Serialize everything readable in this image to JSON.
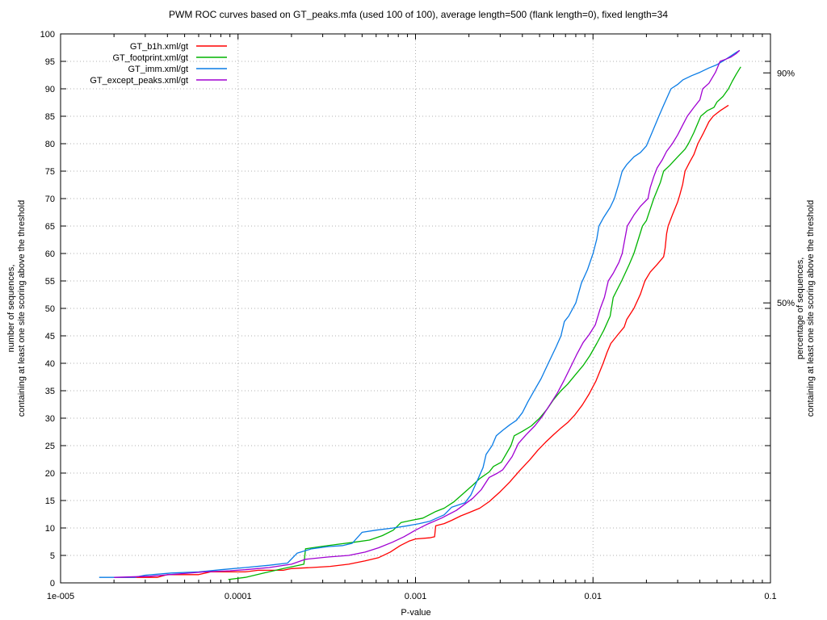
{
  "title": "PWM ROC curves based on GT_peaks.mfa (used 100 of 100), average length=500 (flank length=0), fixed length=34",
  "xlabel": "P-value",
  "ylabel_left": {
    "line1": "number of sequences,",
    "line2": "containing at least one site scoring above the threshold"
  },
  "ylabel_right": {
    "line1": "percentage of sequences,",
    "line2": "containing at least one site scoring above the threshold"
  },
  "chart_data": {
    "type": "line",
    "x_axis": {
      "label": "P-value",
      "scale": "log",
      "min": 1e-05,
      "max": 0.1,
      "decade_tick_labels": [
        "1e-005",
        "0.0001",
        "0.001",
        "0.01",
        "0.1"
      ],
      "grid_decades": [
        0.0001,
        0.001,
        0.01
      ]
    },
    "y_axis": {
      "label": "number of sequences, containing at least one site scoring above the threshold",
      "min": 0,
      "max": 100,
      "tick_step": 5
    },
    "y2_axis": {
      "label": "percentage of sequences, containing at least one site scoring above the threshold",
      "marks": [
        {
          "label": "90%",
          "at_count": 92.9
        },
        {
          "label": "50%",
          "at_count": 51.0
        }
      ]
    },
    "grid": {
      "color": "#b0b0b0",
      "style": "dotted"
    },
    "series": [
      {
        "name": "GT_b1h.xml/gt",
        "color": "#ff0000",
        "points": [
          [
            2e-05,
            1
          ],
          [
            3.5e-05,
            1
          ],
          [
            4e-05,
            1.5
          ],
          [
            6e-05,
            1.5
          ],
          [
            7e-05,
            2
          ],
          [
            0.00011,
            2
          ],
          [
            0.00013,
            2.3
          ],
          [
            0.00018,
            2.3
          ],
          [
            0.0002,
            2.6
          ],
          [
            0.00026,
            2.8
          ],
          [
            0.00033,
            3
          ],
          [
            0.00042,
            3.4
          ],
          [
            0.00052,
            4
          ],
          [
            0.00062,
            4.6
          ],
          [
            0.00072,
            5.6
          ],
          [
            0.00082,
            6.8
          ],
          [
            0.00092,
            7.6
          ],
          [
            0.001,
            8
          ],
          [
            0.0012,
            8.2
          ],
          [
            0.00128,
            8.4
          ],
          [
            0.0013,
            10.4
          ],
          [
            0.00145,
            10.8
          ],
          [
            0.0016,
            11.4
          ],
          [
            0.0018,
            12.2
          ],
          [
            0.002,
            12.8
          ],
          [
            0.0023,
            13.6
          ],
          [
            0.0026,
            14.8
          ],
          [
            0.003,
            16.6
          ],
          [
            0.0034,
            18.4
          ],
          [
            0.0039,
            20.6
          ],
          [
            0.0044,
            22.4
          ],
          [
            0.0049,
            24.2
          ],
          [
            0.0054,
            25.6
          ],
          [
            0.006,
            27
          ],
          [
            0.0066,
            28.2
          ],
          [
            0.0072,
            29.2
          ],
          [
            0.0079,
            30.6
          ],
          [
            0.0087,
            32.4
          ],
          [
            0.0095,
            34.4
          ],
          [
            0.0104,
            36.8
          ],
          [
            0.0114,
            40
          ],
          [
            0.012,
            42
          ],
          [
            0.0126,
            43.6
          ],
          [
            0.0138,
            45.2
          ],
          [
            0.015,
            46.6
          ],
          [
            0.0155,
            48
          ],
          [
            0.017,
            50
          ],
          [
            0.0185,
            52.6
          ],
          [
            0.0196,
            55
          ],
          [
            0.021,
            56.6
          ],
          [
            0.023,
            58
          ],
          [
            0.025,
            59.4
          ],
          [
            0.0255,
            61
          ],
          [
            0.026,
            63.6
          ],
          [
            0.0265,
            65
          ],
          [
            0.028,
            67
          ],
          [
            0.03,
            69.4
          ],
          [
            0.0308,
            70.6
          ],
          [
            0.032,
            72.6
          ],
          [
            0.033,
            75
          ],
          [
            0.035,
            76.6
          ],
          [
            0.037,
            78
          ],
          [
            0.039,
            80
          ],
          [
            0.042,
            82
          ],
          [
            0.045,
            84
          ],
          [
            0.0475,
            85
          ],
          [
            0.052,
            86
          ],
          [
            0.058,
            87
          ]
        ]
      },
      {
        "name": "GT_footprint.xml/gt",
        "color": "#00b400",
        "points": [
          [
            8.8e-05,
            0.6
          ],
          [
            0.00011,
            1
          ],
          [
            0.00014,
            1.8
          ],
          [
            0.00018,
            2.6
          ],
          [
            0.00022,
            3.2
          ],
          [
            0.000235,
            3.4
          ],
          [
            0.00024,
            6.2
          ],
          [
            0.00029,
            6.6
          ],
          [
            0.00036,
            7
          ],
          [
            0.00045,
            7.4
          ],
          [
            0.00055,
            7.8
          ],
          [
            0.00065,
            8.6
          ],
          [
            0.00075,
            9.6
          ],
          [
            0.00083,
            11
          ],
          [
            0.00095,
            11.4
          ],
          [
            0.0011,
            11.8
          ],
          [
            0.0013,
            13
          ],
          [
            0.00145,
            13.6
          ],
          [
            0.00165,
            14.8
          ],
          [
            0.00185,
            16.2
          ],
          [
            0.0021,
            17.8
          ],
          [
            0.0023,
            19
          ],
          [
            0.0026,
            20.2
          ],
          [
            0.00275,
            21.2
          ],
          [
            0.00305,
            22
          ],
          [
            0.00345,
            25
          ],
          [
            0.0036,
            26.8
          ],
          [
            0.004,
            27.6
          ],
          [
            0.0045,
            28.6
          ],
          [
            0.005,
            30
          ],
          [
            0.0055,
            31.6
          ],
          [
            0.006,
            33.4
          ],
          [
            0.0066,
            35
          ],
          [
            0.0072,
            36.2
          ],
          [
            0.008,
            38
          ],
          [
            0.0088,
            39.6
          ],
          [
            0.0096,
            41.4
          ],
          [
            0.0105,
            43.6
          ],
          [
            0.0115,
            46
          ],
          [
            0.0125,
            48.6
          ],
          [
            0.013,
            52
          ],
          [
            0.0145,
            55
          ],
          [
            0.016,
            58
          ],
          [
            0.017,
            60
          ],
          [
            0.019,
            65
          ],
          [
            0.02,
            66
          ],
          [
            0.022,
            70
          ],
          [
            0.024,
            73
          ],
          [
            0.025,
            75
          ],
          [
            0.027,
            76
          ],
          [
            0.03,
            77.6
          ],
          [
            0.033,
            79
          ],
          [
            0.0345,
            80
          ],
          [
            0.037,
            82
          ],
          [
            0.0405,
            85
          ],
          [
            0.044,
            86
          ],
          [
            0.048,
            86.6
          ],
          [
            0.05,
            87.6
          ],
          [
            0.054,
            88.6
          ],
          [
            0.058,
            90
          ],
          [
            0.061,
            91.4
          ],
          [
            0.064,
            92.6
          ],
          [
            0.068,
            94
          ]
        ]
      },
      {
        "name": "GT_imm.xml/gt",
        "color": "#0a7ce6",
        "points": [
          [
            1.65e-05,
            1
          ],
          [
            2.6e-05,
            1
          ],
          [
            3e-05,
            1.4
          ],
          [
            4.2e-05,
            1.8
          ],
          [
            6e-05,
            2
          ],
          [
            8e-05,
            2.4
          ],
          [
            0.00011,
            2.8
          ],
          [
            0.00015,
            3.2
          ],
          [
            0.00019,
            3.6
          ],
          [
            0.000215,
            5.4
          ],
          [
            0.00026,
            6.2
          ],
          [
            0.00032,
            6.6
          ],
          [
            0.00039,
            6.8
          ],
          [
            0.00044,
            7.2
          ],
          [
            0.0005,
            9.2
          ],
          [
            0.0006,
            9.6
          ],
          [
            0.00075,
            10
          ],
          [
            0.0009,
            10.4
          ],
          [
            0.00105,
            10.8
          ],
          [
            0.0012,
            11.2
          ],
          [
            0.00145,
            12.4
          ],
          [
            0.0016,
            13.8
          ],
          [
            0.0019,
            14.6
          ],
          [
            0.00205,
            16
          ],
          [
            0.0022,
            18.2
          ],
          [
            0.0024,
            21
          ],
          [
            0.0025,
            23.4
          ],
          [
            0.0027,
            25
          ],
          [
            0.00285,
            26.8
          ],
          [
            0.0031,
            27.8
          ],
          [
            0.0034,
            28.8
          ],
          [
            0.0037,
            29.6
          ],
          [
            0.004,
            31
          ],
          [
            0.0043,
            33
          ],
          [
            0.0047,
            35.2
          ],
          [
            0.0051,
            37.2
          ],
          [
            0.0056,
            40
          ],
          [
            0.0062,
            43
          ],
          [
            0.0066,
            45
          ],
          [
            0.0069,
            47.6
          ],
          [
            0.0073,
            48.6
          ],
          [
            0.008,
            51
          ],
          [
            0.0086,
            54.6
          ],
          [
            0.0093,
            57
          ],
          [
            0.01,
            60
          ],
          [
            0.0105,
            62.6
          ],
          [
            0.0108,
            65
          ],
          [
            0.0115,
            66.6
          ],
          [
            0.0125,
            68.4
          ],
          [
            0.0132,
            70
          ],
          [
            0.014,
            72.8
          ],
          [
            0.0146,
            75
          ],
          [
            0.0155,
            76.2
          ],
          [
            0.017,
            77.6
          ],
          [
            0.0185,
            78.4
          ],
          [
            0.02,
            79.6
          ],
          [
            0.0215,
            82
          ],
          [
            0.0235,
            85
          ],
          [
            0.025,
            87
          ],
          [
            0.0275,
            90
          ],
          [
            0.03,
            90.8
          ],
          [
            0.032,
            91.6
          ],
          [
            0.036,
            92.4
          ],
          [
            0.04,
            93
          ],
          [
            0.045,
            93.8
          ],
          [
            0.05,
            94.4
          ],
          [
            0.055,
            95.2
          ],
          [
            0.06,
            96
          ],
          [
            0.064,
            96.6
          ],
          [
            0.067,
            97
          ]
        ]
      },
      {
        "name": "GT_except_peaks.xml/gt",
        "color": "#a000d2",
        "points": [
          [
            2e-05,
            1
          ],
          [
            3.2e-05,
            1.2
          ],
          [
            4.5e-05,
            1.6
          ],
          [
            6.5e-05,
            2
          ],
          [
            9e-05,
            2.2
          ],
          [
            0.00011,
            2.4
          ],
          [
            0.00015,
            2.8
          ],
          [
            0.0002,
            3.4
          ],
          [
            0.00024,
            4.3
          ],
          [
            0.00032,
            4.7
          ],
          [
            0.00042,
            5
          ],
          [
            0.00052,
            5.6
          ],
          [
            0.00062,
            6.4
          ],
          [
            0.00074,
            7.4
          ],
          [
            0.00086,
            8.4
          ],
          [
            0.001,
            9.6
          ],
          [
            0.00115,
            10.6
          ],
          [
            0.0014,
            11.8
          ],
          [
            0.0017,
            13.2
          ],
          [
            0.0021,
            15.4
          ],
          [
            0.00235,
            17
          ],
          [
            0.0026,
            19.2
          ],
          [
            0.0029,
            20
          ],
          [
            0.0031,
            20.6
          ],
          [
            0.0035,
            23
          ],
          [
            0.0038,
            25.4
          ],
          [
            0.0042,
            27
          ],
          [
            0.0047,
            28.6
          ],
          [
            0.0052,
            30.4
          ],
          [
            0.0057,
            32.4
          ],
          [
            0.0063,
            34.6
          ],
          [
            0.0069,
            37
          ],
          [
            0.0075,
            39.4
          ],
          [
            0.0081,
            41.6
          ],
          [
            0.0088,
            43.8
          ],
          [
            0.0095,
            45.2
          ],
          [
            0.0103,
            47
          ],
          [
            0.011,
            50
          ],
          [
            0.0116,
            52
          ],
          [
            0.0122,
            55
          ],
          [
            0.013,
            56.4
          ],
          [
            0.014,
            58.4
          ],
          [
            0.0146,
            60
          ],
          [
            0.015,
            62
          ],
          [
            0.0156,
            65
          ],
          [
            0.017,
            67
          ],
          [
            0.0185,
            68.6
          ],
          [
            0.0204,
            70
          ],
          [
            0.021,
            72
          ],
          [
            0.022,
            74
          ],
          [
            0.023,
            75.6
          ],
          [
            0.0245,
            77
          ],
          [
            0.026,
            78.6
          ],
          [
            0.028,
            80
          ],
          [
            0.03,
            81.6
          ],
          [
            0.032,
            83.4
          ],
          [
            0.034,
            85
          ],
          [
            0.037,
            86.6
          ],
          [
            0.04,
            88
          ],
          [
            0.0415,
            90
          ],
          [
            0.045,
            91
          ],
          [
            0.049,
            93
          ],
          [
            0.052,
            95
          ],
          [
            0.056,
            95.4
          ],
          [
            0.06,
            95.8
          ],
          [
            0.064,
            96.4
          ],
          [
            0.067,
            97
          ]
        ]
      }
    ]
  }
}
